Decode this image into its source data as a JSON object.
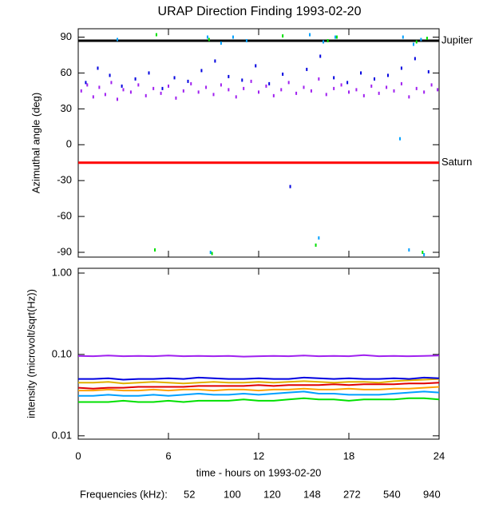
{
  "chart_data": [
    {
      "type": "scatter",
      "title": "URAP Direction Finding  1993-02-20",
      "ylabel": "Azimuthal angle (deg)",
      "xlim": [
        0,
        24
      ],
      "ylim": [
        -94,
        97
      ],
      "yticks": [
        -90,
        -60,
        -30,
        0,
        30,
        60,
        90
      ],
      "annotations": [
        {
          "label": "Jupiter",
          "value": 87,
          "color": "#000000"
        },
        {
          "label": "Saturn",
          "value": -15,
          "color": "#ff0000"
        }
      ],
      "series": [
        {
          "name": "940",
          "color": "#a020f0",
          "x": [
            0.2,
            0.6,
            1.0,
            1.4,
            1.8,
            2.2,
            2.6,
            3.0,
            3.5,
            4.0,
            4.5,
            5.0,
            5.5,
            6.0,
            6.5,
            7.0,
            7.5,
            8.0,
            8.5,
            9.0,
            9.5,
            10.0,
            10.5,
            11.0,
            11.5,
            12.0,
            12.5,
            13.0,
            13.5,
            14.0,
            14.5,
            15.0,
            15.5,
            16.0,
            16.5,
            17.0,
            17.5,
            18.0,
            18.5,
            19.0,
            19.5,
            20.0,
            20.5,
            21.0,
            21.5,
            22.0,
            22.5,
            23.0,
            23.5,
            23.9
          ],
          "values": [
            45,
            50,
            40,
            48,
            42,
            52,
            38,
            46,
            44,
            50,
            41,
            47,
            43,
            49,
            39,
            45,
            51,
            44,
            48,
            42,
            50,
            46,
            40,
            47,
            53,
            44,
            49,
            41,
            46,
            52,
            43,
            48,
            45,
            55,
            42,
            47,
            50,
            44,
            46,
            41,
            49,
            43,
            48,
            45,
            51,
            40,
            47,
            44,
            50,
            46
          ]
        },
        {
          "name": "540",
          "color": "#0000e0",
          "x": [
            0.5,
            1.3,
            2.1,
            2.9,
            3.8,
            4.7,
            5.6,
            6.4,
            7.3,
            8.2,
            9.1,
            10.0,
            10.9,
            11.8,
            12.7,
            13.6,
            14.1,
            15.2,
            16.1,
            17.0,
            17.9,
            18.8,
            19.7,
            20.6,
            21.5,
            22.4,
            23.3
          ],
          "values": [
            52,
            64,
            58,
            49,
            55,
            60,
            47,
            56,
            53,
            62,
            70,
            57,
            54,
            66,
            51,
            59,
            -35,
            63,
            74,
            56,
            52,
            60,
            55,
            58,
            64,
            72,
            61
          ]
        },
        {
          "name": "272",
          "color": "#00a0ff",
          "x": [
            2.6,
            8.6,
            9.5,
            10.3,
            11.2,
            15.4,
            16.3,
            17.1,
            21.4,
            21.6,
            22.3,
            22.8,
            8.8,
            16.0,
            22.0,
            23.0
          ],
          "values": [
            88,
            90,
            85,
            90,
            87,
            92,
            86,
            90,
            5,
            90,
            84,
            88,
            -90,
            -78,
            -88,
            -92
          ]
        },
        {
          "name": "148",
          "color": "#00e000",
          "x": [
            5.2,
            8.7,
            13.6,
            16.6,
            17.2,
            22.5,
            23.2,
            5.1,
            8.9,
            15.8,
            22.9
          ],
          "values": [
            92,
            88,
            91,
            87,
            90,
            86,
            89,
            -88,
            -91,
            -84,
            -90
          ]
        }
      ]
    },
    {
      "type": "line",
      "ylabel": "intensity (microvolt/sqrt(Hz))",
      "xlabel": "time - hours on 1993-02-20",
      "legend_title": "Frequencies (kHz):",
      "log_y": true,
      "xlim": [
        0,
        24
      ],
      "xticks": [
        0,
        6,
        12,
        18,
        24
      ],
      "ylim": [
        0.0091,
        1.145
      ],
      "yticks": [
        0.01,
        {
          "value": 0.1,
          "label": "0.10"
        },
        {
          "value": 1,
          "label": "1.00"
        }
      ],
      "x": [
        0,
        1,
        2,
        3,
        4,
        5,
        6,
        7,
        8,
        9,
        10,
        11,
        12,
        13,
        14,
        15,
        16,
        17,
        18,
        19,
        20,
        21,
        22,
        23,
        24
      ],
      "series": [
        {
          "name": "52",
          "color": "#e00000",
          "values": [
            0.039,
            0.038,
            0.039,
            0.039,
            0.04,
            0.04,
            0.04,
            0.04,
            0.041,
            0.041,
            0.041,
            0.041,
            0.042,
            0.041,
            0.042,
            0.042,
            0.042,
            0.043,
            0.042,
            0.043,
            0.043,
            0.043,
            0.044,
            0.044,
            0.045
          ]
        },
        {
          "name": "100",
          "color": "#ffa000",
          "values": [
            0.036,
            0.036,
            0.037,
            0.036,
            0.036,
            0.037,
            0.036,
            0.037,
            0.037,
            0.036,
            0.037,
            0.037,
            0.036,
            0.037,
            0.037,
            0.038,
            0.037,
            0.037,
            0.038,
            0.037,
            0.037,
            0.038,
            0.038,
            0.039,
            0.04
          ]
        },
        {
          "name": "120",
          "color": "#e0b000",
          "values": [
            0.045,
            0.045,
            0.046,
            0.044,
            0.045,
            0.046,
            0.045,
            0.044,
            0.045,
            0.046,
            0.045,
            0.045,
            0.046,
            0.045,
            0.046,
            0.047,
            0.046,
            0.045,
            0.046,
            0.046,
            0.045,
            0.047,
            0.048,
            0.049,
            0.05
          ]
        },
        {
          "name": "148",
          "color": "#00e000",
          "values": [
            0.026,
            0.026,
            0.026,
            0.027,
            0.026,
            0.026,
            0.027,
            0.026,
            0.027,
            0.027,
            0.027,
            0.028,
            0.027,
            0.027,
            0.028,
            0.029,
            0.028,
            0.028,
            0.027,
            0.028,
            0.028,
            0.028,
            0.029,
            0.029,
            0.028
          ]
        },
        {
          "name": "272",
          "color": "#00a0ff",
          "values": [
            0.031,
            0.031,
            0.032,
            0.031,
            0.031,
            0.032,
            0.031,
            0.032,
            0.033,
            0.032,
            0.032,
            0.033,
            0.032,
            0.033,
            0.034,
            0.035,
            0.033,
            0.033,
            0.032,
            0.032,
            0.032,
            0.033,
            0.034,
            0.035,
            0.034
          ]
        },
        {
          "name": "540",
          "color": "#0000e0",
          "values": [
            0.05,
            0.05,
            0.051,
            0.049,
            0.05,
            0.05,
            0.051,
            0.05,
            0.052,
            0.051,
            0.05,
            0.05,
            0.051,
            0.05,
            0.05,
            0.052,
            0.051,
            0.05,
            0.051,
            0.05,
            0.05,
            0.051,
            0.05,
            0.052,
            0.051
          ]
        },
        {
          "name": "940",
          "color": "#a020f0",
          "values": [
            0.096,
            0.095,
            0.097,
            0.095,
            0.096,
            0.095,
            0.097,
            0.095,
            0.096,
            0.095,
            0.096,
            0.094,
            0.095,
            0.096,
            0.095,
            0.097,
            0.095,
            0.096,
            0.095,
            0.098,
            0.095,
            0.096,
            0.095,
            0.096,
            0.097
          ]
        }
      ]
    }
  ]
}
